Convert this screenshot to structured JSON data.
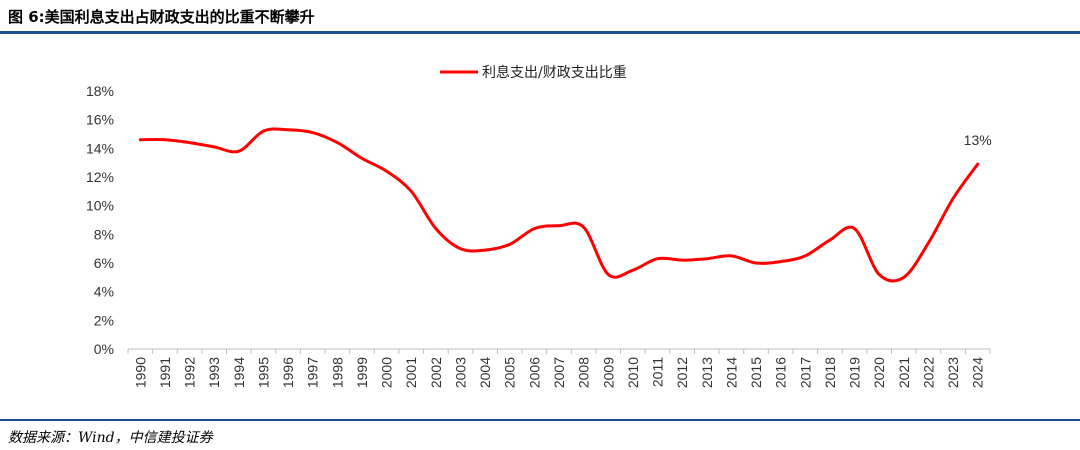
{
  "header": {
    "title": "图 6:美国利息支出占财政支出的比重不断攀升"
  },
  "footer": {
    "source": "数据来源：Wind，中信建投证券"
  },
  "colors": {
    "series": "#ff0000",
    "rule": "#1f4e8c",
    "axis": "#bfbfbf"
  },
  "chart_data": {
    "type": "line",
    "title": "",
    "xlabel": "",
    "ylabel": "",
    "ylim": [
      0,
      18
    ],
    "ytick_step": 2,
    "y_format": "percent",
    "grid": false,
    "legend_position": "top-center",
    "x": [
      "1990",
      "1991",
      "1992",
      "1993",
      "1994",
      "1995",
      "1996",
      "1997",
      "1998",
      "1999",
      "2000",
      "2001",
      "2002",
      "2003",
      "2004",
      "2005",
      "2006",
      "2007",
      "2008",
      "2009",
      "2010",
      "2011",
      "2012",
      "2013",
      "2014",
      "2015",
      "2016",
      "2017",
      "2018",
      "2019",
      "2020",
      "2021",
      "2022",
      "2023",
      "2024"
    ],
    "series": [
      {
        "name": "利息支出/财政支出比重",
        "values": [
          14.6,
          14.6,
          14.4,
          14.1,
          13.8,
          15.2,
          15.3,
          15.1,
          14.4,
          13.3,
          12.4,
          11.0,
          8.4,
          7.0,
          6.9,
          7.3,
          8.4,
          8.6,
          8.5,
          5.2,
          5.5,
          6.3,
          6.2,
          6.3,
          6.5,
          6.0,
          6.1,
          6.5,
          7.6,
          8.4,
          5.2,
          5.0,
          7.4,
          10.5,
          12.9
        ]
      }
    ],
    "annotations": [
      {
        "x": "2024",
        "text": "13%"
      }
    ]
  }
}
